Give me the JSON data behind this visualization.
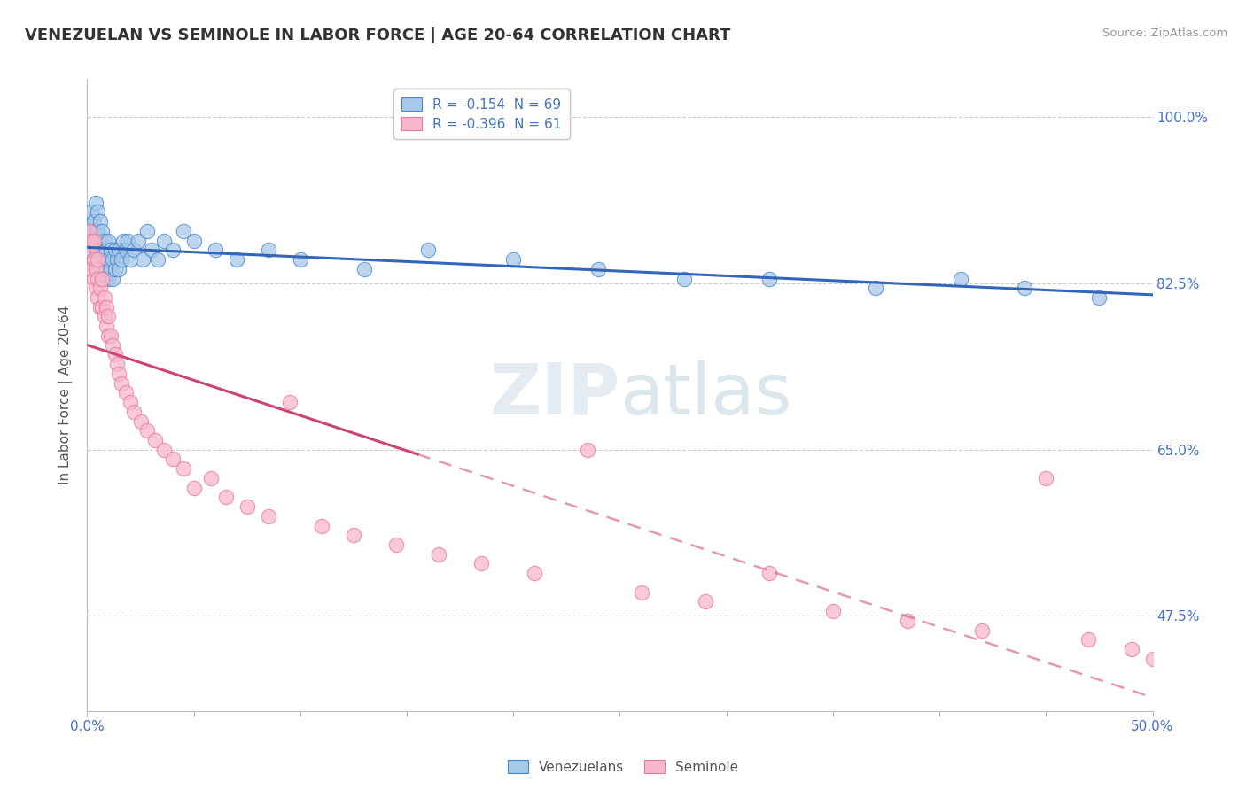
{
  "title": "VENEZUELAN VS SEMINOLE IN LABOR FORCE | AGE 20-64 CORRELATION CHART",
  "source": "Source: ZipAtlas.com",
  "ylabel": "In Labor Force | Age 20-64",
  "xmin": 0.0,
  "xmax": 0.5,
  "ymin": 0.375,
  "ymax": 1.04,
  "yticks": [
    0.475,
    0.65,
    0.825,
    1.0
  ],
  "ytick_labels": [
    "47.5%",
    "65.0%",
    "82.5%",
    "100.0%"
  ],
  "legend1_label": "R = -0.154  N = 69",
  "legend2_label": "R = -0.396  N = 61",
  "legend_bottom_label1": "Venezuelans",
  "legend_bottom_label2": "Seminole",
  "blue_fill": "#a8c8e8",
  "blue_edge": "#4488cc",
  "pink_fill": "#f8b8cc",
  "pink_edge": "#e87898",
  "blue_line": "#3366bb",
  "pink_line": "#cc4477",
  "watermark_color": "#ccdde8",
  "venezuelan_x": [
    0.001,
    0.001,
    0.002,
    0.002,
    0.002,
    0.003,
    0.003,
    0.003,
    0.004,
    0.004,
    0.004,
    0.004,
    0.005,
    0.005,
    0.005,
    0.005,
    0.006,
    0.006,
    0.006,
    0.006,
    0.007,
    0.007,
    0.007,
    0.008,
    0.008,
    0.008,
    0.009,
    0.009,
    0.01,
    0.01,
    0.01,
    0.011,
    0.011,
    0.012,
    0.012,
    0.013,
    0.013,
    0.014,
    0.015,
    0.015,
    0.016,
    0.017,
    0.018,
    0.019,
    0.02,
    0.022,
    0.024,
    0.026,
    0.028,
    0.03,
    0.033,
    0.036,
    0.04,
    0.045,
    0.05,
    0.06,
    0.07,
    0.085,
    0.1,
    0.13,
    0.16,
    0.2,
    0.24,
    0.28,
    0.32,
    0.37,
    0.41,
    0.44,
    0.475
  ],
  "venezuelan_y": [
    0.87,
    0.89,
    0.86,
    0.88,
    0.9,
    0.85,
    0.87,
    0.89,
    0.84,
    0.86,
    0.88,
    0.91,
    0.84,
    0.86,
    0.88,
    0.9,
    0.83,
    0.85,
    0.87,
    0.89,
    0.84,
    0.86,
    0.88,
    0.83,
    0.85,
    0.87,
    0.84,
    0.86,
    0.83,
    0.85,
    0.87,
    0.84,
    0.86,
    0.83,
    0.85,
    0.84,
    0.86,
    0.85,
    0.84,
    0.86,
    0.85,
    0.87,
    0.86,
    0.87,
    0.85,
    0.86,
    0.87,
    0.85,
    0.88,
    0.86,
    0.85,
    0.87,
    0.86,
    0.88,
    0.87,
    0.86,
    0.85,
    0.86,
    0.85,
    0.84,
    0.86,
    0.85,
    0.84,
    0.83,
    0.83,
    0.82,
    0.83,
    0.82,
    0.81
  ],
  "seminole_x": [
    0.001,
    0.001,
    0.002,
    0.002,
    0.003,
    0.003,
    0.003,
    0.004,
    0.004,
    0.005,
    0.005,
    0.005,
    0.006,
    0.006,
    0.007,
    0.007,
    0.008,
    0.008,
    0.009,
    0.009,
    0.01,
    0.01,
    0.011,
    0.012,
    0.013,
    0.014,
    0.015,
    0.016,
    0.018,
    0.02,
    0.022,
    0.025,
    0.028,
    0.032,
    0.036,
    0.04,
    0.045,
    0.05,
    0.058,
    0.065,
    0.075,
    0.085,
    0.095,
    0.11,
    0.125,
    0.145,
    0.165,
    0.185,
    0.21,
    0.235,
    0.26,
    0.29,
    0.32,
    0.35,
    0.385,
    0.42,
    0.45,
    0.47,
    0.49,
    0.5,
    0.505
  ],
  "seminole_y": [
    0.86,
    0.88,
    0.84,
    0.87,
    0.83,
    0.85,
    0.87,
    0.82,
    0.84,
    0.81,
    0.83,
    0.85,
    0.8,
    0.82,
    0.8,
    0.83,
    0.79,
    0.81,
    0.78,
    0.8,
    0.77,
    0.79,
    0.77,
    0.76,
    0.75,
    0.74,
    0.73,
    0.72,
    0.71,
    0.7,
    0.69,
    0.68,
    0.67,
    0.66,
    0.65,
    0.64,
    0.63,
    0.61,
    0.62,
    0.6,
    0.59,
    0.58,
    0.7,
    0.57,
    0.56,
    0.55,
    0.54,
    0.53,
    0.52,
    0.65,
    0.5,
    0.49,
    0.52,
    0.48,
    0.47,
    0.46,
    0.62,
    0.45,
    0.44,
    0.43,
    0.42
  ],
  "sem_solid_xend": 0.155,
  "sem_dash_xstart": 0.155
}
